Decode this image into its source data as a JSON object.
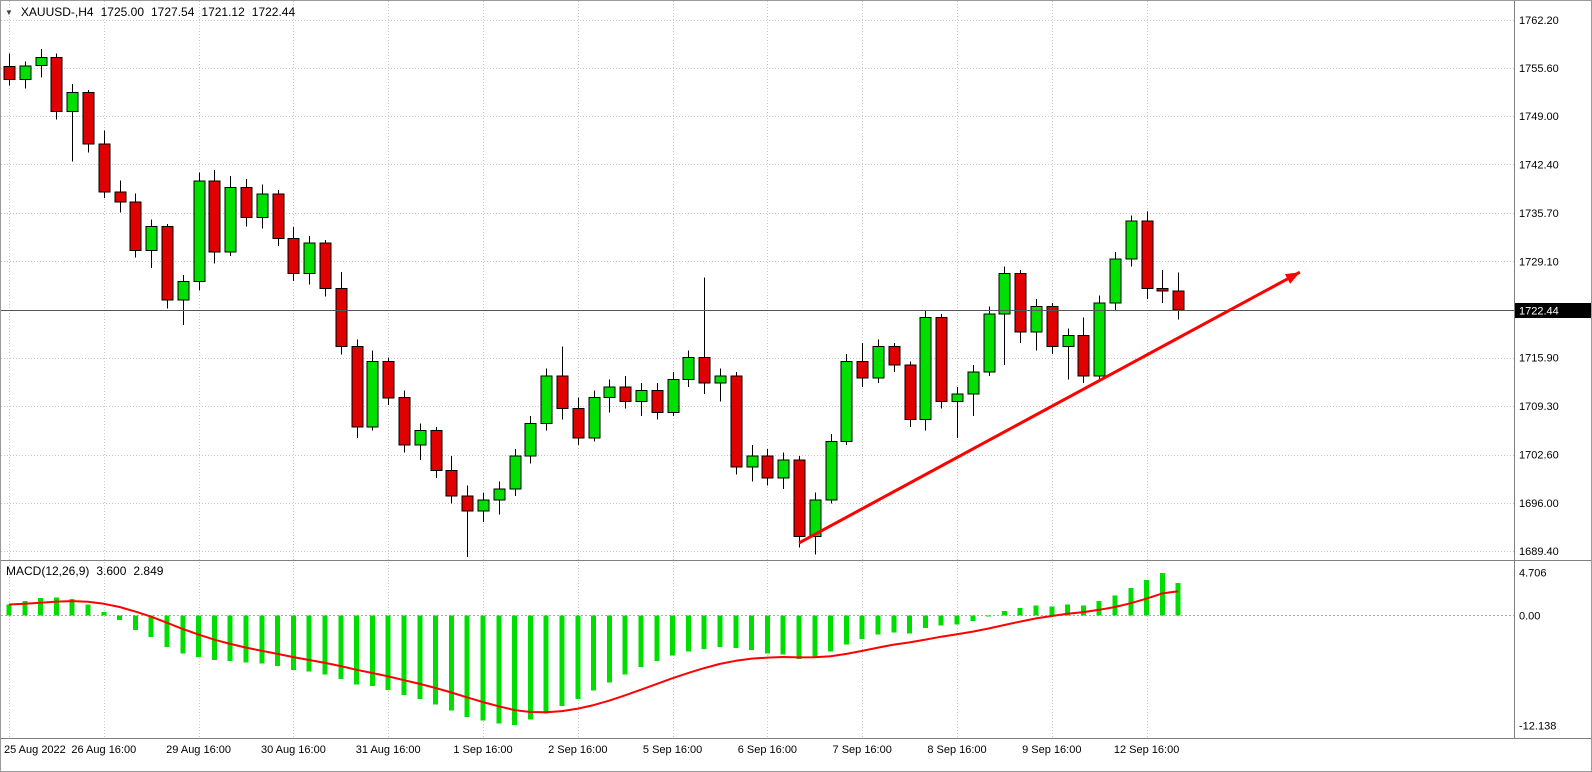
{
  "header": {
    "collapse_icon": "▼",
    "symbol_timeframe": "XAUUSD-,H4",
    "open": "1725.00",
    "high": "1727.54",
    "low": "1721.12",
    "close": "1722.44"
  },
  "macd_label": {
    "name": "MACD(12,26,9)",
    "main_value": "3.600",
    "signal_value": "2.849"
  },
  "chart_data": {
    "type": "candlestick",
    "symbol": "XAUUSD-",
    "timeframe": "H4",
    "price_axis": {
      "ticks": [
        1762.2,
        1755.6,
        1749.0,
        1742.4,
        1735.7,
        1729.1,
        1715.9,
        1709.3,
        1702.6,
        1696.0,
        1689.4
      ],
      "current_price": 1722.44,
      "range": [
        1688.3,
        1764.5
      ]
    },
    "time_axis": {
      "labels": [
        {
          "text": "25 Aug 2022",
          "index": 0
        },
        {
          "text": "26 Aug 16:00",
          "index": 6
        },
        {
          "text": "29 Aug 16:00",
          "index": 12
        },
        {
          "text": "30 Aug 16:00",
          "index": 18
        },
        {
          "text": "31 Aug 16:00",
          "index": 24
        },
        {
          "text": "1 Sep 16:00",
          "index": 30
        },
        {
          "text": "2 Sep 16:00",
          "index": 36
        },
        {
          "text": "5 Sep 16:00",
          "index": 42
        },
        {
          "text": "6 Sep 16:00",
          "index": 48
        },
        {
          "text": "7 Sep 16:00",
          "index": 54
        },
        {
          "text": "8 Sep 16:00",
          "index": 60
        },
        {
          "text": "9 Sep 16:00",
          "index": 66
        },
        {
          "text": "12 Sep 16:00",
          "index": 72
        }
      ]
    },
    "candles": [
      [
        1755.8,
        1757.6,
        1753.2,
        1754.0
      ],
      [
        1754.0,
        1756.5,
        1752.8,
        1755.9
      ],
      [
        1755.9,
        1758.2,
        1754.3,
        1757.0
      ],
      [
        1757.0,
        1757.6,
        1748.5,
        1749.6
      ],
      [
        1749.6,
        1753.4,
        1742.8,
        1752.2
      ],
      [
        1752.2,
        1752.6,
        1744.0,
        1745.2
      ],
      [
        1745.2,
        1747.0,
        1737.8,
        1738.6
      ],
      [
        1738.6,
        1740.2,
        1735.8,
        1737.2
      ],
      [
        1737.2,
        1738.4,
        1729.6,
        1730.6
      ],
      [
        1730.6,
        1734.8,
        1728.2,
        1733.9
      ],
      [
        1733.9,
        1734.2,
        1722.6,
        1723.8
      ],
      [
        1723.8,
        1727.2,
        1720.4,
        1726.3
      ],
      [
        1726.3,
        1741.3,
        1725.1,
        1740.1
      ],
      [
        1740.1,
        1741.6,
        1728.8,
        1730.4
      ],
      [
        1730.4,
        1740.8,
        1729.8,
        1739.2
      ],
      [
        1739.2,
        1740.4,
        1733.9,
        1735.1
      ],
      [
        1735.1,
        1739.6,
        1733.6,
        1738.3
      ],
      [
        1738.3,
        1738.9,
        1731.2,
        1732.2
      ],
      [
        1732.2,
        1733.8,
        1726.4,
        1727.4
      ],
      [
        1727.4,
        1732.6,
        1725.9,
        1731.6
      ],
      [
        1731.6,
        1732.0,
        1724.3,
        1725.4
      ],
      [
        1725.4,
        1727.6,
        1716.3,
        1717.4
      ],
      [
        1717.4,
        1718.4,
        1704.9,
        1706.4
      ],
      [
        1706.4,
        1716.9,
        1705.9,
        1715.4
      ],
      [
        1715.4,
        1715.9,
        1709.4,
        1710.4
      ],
      [
        1710.4,
        1711.4,
        1702.9,
        1703.9
      ],
      [
        1703.9,
        1706.9,
        1701.9,
        1705.9
      ],
      [
        1705.9,
        1706.4,
        1699.4,
        1700.4
      ],
      [
        1700.4,
        1702.4,
        1695.9,
        1696.9
      ],
      [
        1696.9,
        1698.4,
        1688.6,
        1694.9
      ],
      [
        1694.9,
        1697.4,
        1693.4,
        1696.4
      ],
      [
        1696.4,
        1698.9,
        1694.4,
        1697.9
      ],
      [
        1697.9,
        1703.4,
        1696.9,
        1702.4
      ],
      [
        1702.4,
        1707.9,
        1701.4,
        1706.9
      ],
      [
        1706.9,
        1714.4,
        1705.9,
        1713.4
      ],
      [
        1713.4,
        1717.4,
        1707.4,
        1708.9
      ],
      [
        1708.9,
        1710.4,
        1703.9,
        1704.9
      ],
      [
        1704.9,
        1711.4,
        1704.4,
        1710.4
      ],
      [
        1710.4,
        1712.9,
        1708.4,
        1711.9
      ],
      [
        1711.9,
        1713.4,
        1708.9,
        1709.9
      ],
      [
        1709.9,
        1712.4,
        1707.9,
        1711.4
      ],
      [
        1711.4,
        1712.4,
        1707.4,
        1708.4
      ],
      [
        1708.4,
        1713.9,
        1707.9,
        1712.9
      ],
      [
        1712.9,
        1716.9,
        1711.9,
        1715.9
      ],
      [
        1715.9,
        1726.9,
        1710.9,
        1712.4
      ],
      [
        1712.4,
        1714.4,
        1709.9,
        1713.4
      ],
      [
        1713.4,
        1713.9,
        1699.9,
        1700.9
      ],
      [
        1700.9,
        1703.9,
        1698.9,
        1702.4
      ],
      [
        1702.4,
        1703.4,
        1698.4,
        1699.4
      ],
      [
        1699.4,
        1702.9,
        1697.9,
        1701.9
      ],
      [
        1701.9,
        1702.4,
        1689.9,
        1691.4
      ],
      [
        1691.4,
        1697.4,
        1688.9,
        1696.4
      ],
      [
        1696.4,
        1705.4,
        1695.9,
        1704.4
      ],
      [
        1704.4,
        1716.4,
        1703.9,
        1715.4
      ],
      [
        1715.4,
        1717.9,
        1711.9,
        1713.1
      ],
      [
        1713.1,
        1718.4,
        1712.4,
        1717.4
      ],
      [
        1717.4,
        1717.9,
        1713.9,
        1714.9
      ],
      [
        1714.9,
        1715.4,
        1706.4,
        1707.4
      ],
      [
        1707.4,
        1722.4,
        1705.9,
        1721.4
      ],
      [
        1721.4,
        1721.9,
        1708.9,
        1709.9
      ],
      [
        1709.9,
        1711.9,
        1704.9,
        1710.9
      ],
      [
        1710.9,
        1714.9,
        1707.9,
        1713.9
      ],
      [
        1713.9,
        1722.9,
        1713.4,
        1721.9
      ],
      [
        1721.9,
        1728.4,
        1714.9,
        1727.4
      ],
      [
        1727.4,
        1727.9,
        1717.9,
        1719.4
      ],
      [
        1719.4,
        1723.9,
        1716.9,
        1722.9
      ],
      [
        1722.9,
        1723.4,
        1716.4,
        1717.4
      ],
      [
        1717.4,
        1719.9,
        1712.9,
        1718.9
      ],
      [
        1718.9,
        1721.4,
        1712.4,
        1713.4
      ],
      [
        1713.4,
        1724.4,
        1712.9,
        1723.4
      ],
      [
        1723.4,
        1730.4,
        1722.4,
        1729.4
      ],
      [
        1729.4,
        1735.4,
        1728.4,
        1734.6
      ],
      [
        1734.6,
        1735.9,
        1723.9,
        1725.4
      ],
      [
        1725.4,
        1727.9,
        1723.4,
        1725.0
      ],
      [
        1725.0,
        1727.54,
        1721.12,
        1722.44
      ]
    ],
    "macd": {
      "name": "MACD(12,26,9)",
      "main_value": 3.6,
      "signal_value": 2.849,
      "signal_period": 9,
      "ticks": [
        {
          "value": 4.706,
          "label": "4.706"
        },
        {
          "value": 0,
          "label": "0.00"
        },
        {
          "value": -12.138,
          "label": "-12.138"
        }
      ],
      "range": [
        -13.4,
        6.0
      ],
      "histogram": [
        1.2,
        1.6,
        1.9,
        2.0,
        1.8,
        1.2,
        0.4,
        -0.5,
        -1.6,
        -2.4,
        -3.5,
        -4.2,
        -4.6,
        -4.9,
        -5.0,
        -5.2,
        -5.3,
        -5.6,
        -6.0,
        -6.2,
        -6.5,
        -7.0,
        -7.6,
        -7.8,
        -8.2,
        -8.8,
        -9.2,
        -9.8,
        -10.5,
        -11.2,
        -11.6,
        -11.9,
        -12.1,
        -11.5,
        -10.8,
        -10.0,
        -9.2,
        -8.3,
        -7.4,
        -6.5,
        -5.7,
        -5.0,
        -4.4,
        -4.0,
        -3.7,
        -3.5,
        -3.6,
        -3.8,
        -4.2,
        -4.3,
        -4.8,
        -4.6,
        -4.0,
        -3.2,
        -2.6,
        -2.1,
        -1.9,
        -2.0,
        -1.4,
        -1.1,
        -1.0,
        -0.6,
        -0.1,
        0.5,
        0.8,
        1.1,
        1.0,
        1.2,
        1.1,
        1.6,
        2.2,
        3.0,
        3.9,
        4.7,
        3.6
      ]
    },
    "trend_arrow": {
      "start": {
        "index": 50.0,
        "price": 1690.5
      },
      "end": {
        "index": 81.7,
        "price": 1727.6
      }
    },
    "colors": {
      "bull": "#00e000",
      "bear": "#e00000",
      "outline": "#000000",
      "histogram": "#00dd00",
      "signal": "#ff0000",
      "arrow": "#ff0000",
      "grid": "#c6c6c6",
      "separator": "#808080",
      "current_price_line": "#555555",
      "price_tag_bg": "#000000",
      "price_tag_text": "#ffffff"
    }
  }
}
